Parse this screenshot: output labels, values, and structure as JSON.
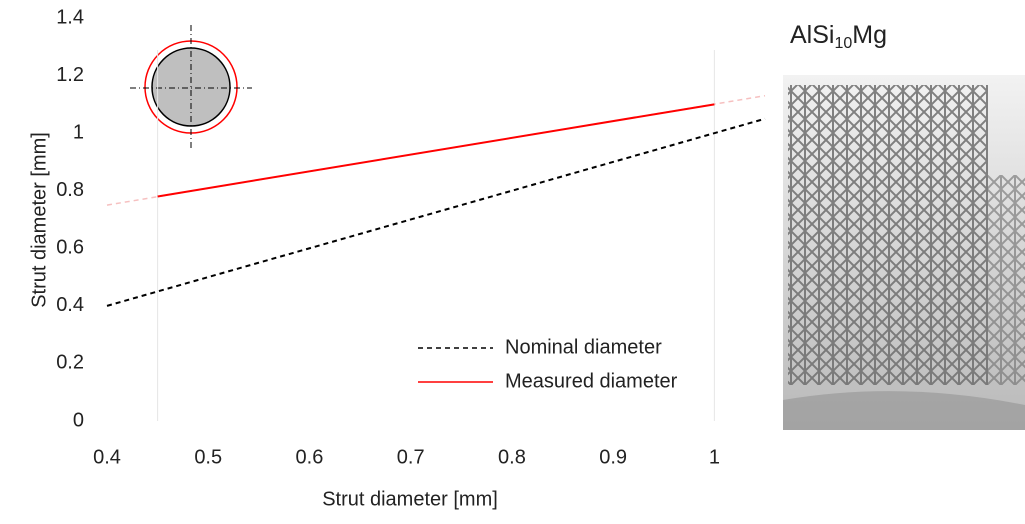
{
  "chart_data": {
    "type": "line",
    "xlabel": "Strut diameter [mm]",
    "ylabel": "Strut diameter [mm]",
    "xlim": [
      0.4,
      1.05
    ],
    "xticks": [
      0.4,
      0.5,
      0.6,
      0.7,
      0.8,
      0.9,
      1
    ],
    "ylim": [
      0,
      1.4
    ],
    "yticks": [
      0,
      0.2,
      0.4,
      0.6,
      0.8,
      1,
      1.2,
      1.4
    ],
    "grid": false,
    "legend": "lower right",
    "vlines": [
      0.45,
      1
    ],
    "vline_color": "#e6e6e6",
    "series": [
      {
        "name": "Nominal diameter",
        "color": "#000000",
        "dashed": true,
        "x": [
          0.4,
          1.05
        ],
        "values": [
          0.4,
          1.05
        ]
      },
      {
        "name": "Measured diameter",
        "color": "#ff0000",
        "dashed": false,
        "x": [
          0.45,
          1
        ],
        "values": [
          0.78,
          1.1
        ],
        "fit_x": [
          0.4,
          1.05
        ],
        "fit_values": [
          0.75,
          1.13
        ],
        "fit_color": "#f6c0c0"
      }
    ],
    "inset_label": {
      "base": "AlSi",
      "subscript": "10",
      "rest": "Mg"
    }
  }
}
